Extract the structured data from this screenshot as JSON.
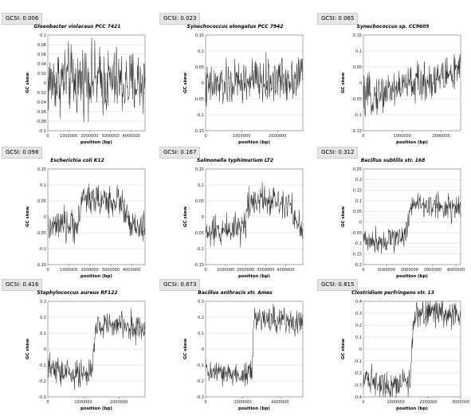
{
  "chart_data": [
    {
      "type": "line",
      "gcsi": "GCSI: 0.006",
      "title": "Gloeobacter violaceus PCC 7421",
      "xlabel": "position (bp)",
      "ylabel": "GC skew",
      "xlim": [
        0,
        4660000
      ],
      "ylim": [
        -0.1,
        0.1
      ],
      "xticks": [
        0,
        1000000,
        2000000,
        3000000,
        4000000
      ],
      "xtick_labels": [
        "0",
        "1000000",
        "2000000",
        "3000000",
        "4000000"
      ],
      "yticks": [
        -0.1,
        -0.08,
        -0.06,
        -0.04,
        -0.02,
        0,
        0.02,
        0.04,
        0.06,
        0.08,
        0.1
      ],
      "ytick_labels": [
        "-0.1",
        "-0.08",
        "-0.06",
        "-0.04",
        "-0.02",
        "0",
        "0.02",
        "0.04",
        "0.06",
        "0.08",
        "0.1"
      ],
      "x": [
        0,
        470000,
        930000,
        1400000,
        1860000,
        2330000,
        2800000,
        3260000,
        3730000,
        4190000,
        4660000
      ],
      "y": [
        0.0,
        0.005,
        0.01,
        0.0,
        0.015,
        0.005,
        0.0,
        0.005,
        -0.005,
        0.0,
        0.005
      ],
      "noise": 0.035
    },
    {
      "type": "line",
      "gcsi": "GCSI: 0.023",
      "title": "Synechococcus elongatus PCC 7942",
      "xlabel": "position (bp)",
      "ylabel": "GC skew",
      "xlim": [
        0,
        2700000
      ],
      "ylim": [
        -0.15,
        0.15
      ],
      "xticks": [
        0,
        1000000,
        2000000
      ],
      "xtick_labels": [
        "0",
        "1000000",
        "2000000"
      ],
      "yticks": [
        -0.15,
        -0.1,
        -0.05,
        0,
        0.05,
        0.1,
        0.15
      ],
      "ytick_labels": [
        "-0.15",
        "-0.1",
        "-0.05",
        "0",
        "0.05",
        "0.1",
        "0.15"
      ],
      "x": [
        0,
        270000,
        540000,
        810000,
        1080000,
        1350000,
        1620000,
        1890000,
        2160000,
        2430000,
        2700000
      ],
      "y": [
        -0.02,
        -0.01,
        -0.01,
        0.0,
        0.0,
        0.01,
        0.0,
        0.01,
        0.01,
        0.02,
        0.03
      ],
      "noise": 0.035
    },
    {
      "type": "line",
      "gcsi": "GCSI: 0.065",
      "title": "Synechococcus sp. CC9605",
      "xlabel": "position (bp)",
      "ylabel": "GC skew",
      "xlim": [
        0,
        2500000
      ],
      "ylim": [
        -0.15,
        0.15
      ],
      "xticks": [
        0,
        1000000,
        2000000
      ],
      "xtick_labels": [
        "0",
        "1000000",
        "2000000"
      ],
      "yticks": [
        -0.15,
        -0.1,
        -0.05,
        0,
        0.05,
        0.1,
        0.15
      ],
      "ytick_labels": [
        "-0.15",
        "-0.1",
        "-0.05",
        "0",
        "0.05",
        "0.1",
        "0.15"
      ],
      "x": [
        0,
        250000,
        500000,
        750000,
        1000000,
        1250000,
        1500000,
        1750000,
        2000000,
        2250000,
        2500000
      ],
      "y": [
        -0.05,
        -0.04,
        -0.03,
        -0.02,
        -0.01,
        0.0,
        0.0,
        0.01,
        0.02,
        0.03,
        0.04
      ],
      "noise": 0.03
    },
    {
      "type": "line",
      "gcsi": "GCSI: 0.098",
      "title": "Escherichia coli K12",
      "xlabel": "position (bp)",
      "ylabel": "GC skew",
      "xlim": [
        0,
        4640000
      ],
      "ylim": [
        -0.15,
        0.15
      ],
      "xticks": [
        0,
        1000000,
        2000000,
        3000000,
        4000000
      ],
      "xtick_labels": [
        "0",
        "1000000",
        "2000000",
        "3000000",
        "4000000"
      ],
      "yticks": [
        -0.15,
        -0.1,
        -0.05,
        0,
        0.05,
        0.1,
        0.15
      ],
      "ytick_labels": [
        "-0.15",
        "-0.1",
        "-0.05",
        "0",
        "0.05",
        "0.1",
        "0.15"
      ],
      "x": [
        0,
        500000,
        1000000,
        1500000,
        1600000,
        2000000,
        2500000,
        3000000,
        3500000,
        3900000,
        4640000
      ],
      "y": [
        -0.04,
        -0.03,
        -0.03,
        -0.02,
        0.06,
        0.06,
        0.05,
        0.05,
        0.05,
        -0.03,
        -0.04
      ],
      "noise": 0.025
    },
    {
      "type": "line",
      "gcsi": "GCSI: 0.167",
      "title": "Salmonella typhimurium LT2",
      "xlabel": "position (bp)",
      "ylabel": "GC skew",
      "xlim": [
        0,
        4860000
      ],
      "ylim": [
        -0.15,
        0.15
      ],
      "xticks": [
        0,
        1000000,
        2000000,
        3000000,
        4000000
      ],
      "xtick_labels": [
        "0",
        "1000000",
        "2000000",
        "3000000",
        "4000000"
      ],
      "yticks": [
        -0.15,
        -0.1,
        -0.05,
        0,
        0.05,
        0.1,
        0.15
      ],
      "ytick_labels": [
        "-0.15",
        "-0.1",
        "-0.05",
        "0",
        "0.05",
        "0.1",
        "0.15"
      ],
      "x": [
        0,
        500000,
        1000000,
        1500000,
        2000000,
        2100000,
        2800000,
        3500000,
        4200000,
        4600000,
        4860000
      ],
      "y": [
        -0.05,
        -0.05,
        -0.04,
        -0.03,
        -0.03,
        0.05,
        0.06,
        0.05,
        0.05,
        -0.03,
        -0.05
      ],
      "noise": 0.025
    },
    {
      "type": "line",
      "gcsi": "GCSI: 0.312",
      "title": "Bacillus subtilis str. 168",
      "xlabel": "position (bp)",
      "ylabel": "GC skew",
      "xlim": [
        0,
        4210000
      ],
      "ylim": [
        -0.2,
        0.25
      ],
      "xticks": [
        0,
        1000000,
        2000000,
        3000000,
        4000000
      ],
      "xtick_labels": [
        "0",
        "1000000",
        "2000000",
        "3000000",
        "4000000"
      ],
      "yticks": [
        -0.2,
        -0.15,
        -0.1,
        -0.05,
        0,
        0.05,
        0.1,
        0.15,
        0.2,
        0.25
      ],
      "ytick_labels": [
        "-0.2",
        "-0.15",
        "-0.1",
        "-0.05",
        "0",
        "0.05",
        "0.1",
        "0.15",
        "0.2",
        "0.25"
      ],
      "x": [
        0,
        500000,
        1000000,
        1500000,
        1900000,
        2000000,
        2100000,
        2500000,
        3000000,
        3500000,
        4210000
      ],
      "y": [
        -0.08,
        -0.09,
        -0.08,
        -0.07,
        -0.05,
        0.08,
        0.09,
        0.08,
        0.08,
        0.07,
        0.06
      ],
      "noise": 0.03
    },
    {
      "type": "line",
      "gcsi": "GCSI: 0.416",
      "title": "Staphylococcus aureus RF122",
      "xlabel": "position (bp)",
      "ylabel": "GC skew",
      "xlim": [
        0,
        2740000
      ],
      "ylim": [
        -0.3,
        0.3
      ],
      "xticks": [
        0,
        1000000,
        2000000
      ],
      "xtick_labels": [
        "0",
        "1000000",
        "2000000"
      ],
      "yticks": [
        -0.3,
        -0.2,
        -0.1,
        0,
        0.1,
        0.2,
        0.3
      ],
      "ytick_labels": [
        "-0.3",
        "-0.2",
        "-0.1",
        "0",
        "0.1",
        "0.2",
        "0.3"
      ],
      "x": [
        0,
        300000,
        600000,
        900000,
        1250000,
        1350000,
        1600000,
        1900000,
        2200000,
        2500000,
        2740000
      ],
      "y": [
        -0.12,
        -0.14,
        -0.15,
        -0.16,
        -0.15,
        0.13,
        0.16,
        0.15,
        0.15,
        0.14,
        0.12
      ],
      "noise": 0.045
    },
    {
      "type": "line",
      "gcsi": "GCSI: 0.673",
      "title": "Bacillus anthracis str. Ames",
      "xlabel": "position (bp)",
      "ylabel": "GC skew",
      "xlim": [
        0,
        5230000
      ],
      "ylim": [
        -0.3,
        0.3
      ],
      "xticks": [
        0,
        2000000,
        4000000
      ],
      "xtick_labels": [
        "0",
        "2000000",
        "4000000"
      ],
      "yticks": [
        -0.3,
        -0.2,
        -0.1,
        0,
        0.1,
        0.2,
        0.3
      ],
      "ytick_labels": [
        "-0.3",
        "-0.2",
        "-0.1",
        "0",
        "0.1",
        "0.2",
        "0.3"
      ],
      "x": [
        0,
        600000,
        1200000,
        1800000,
        2500000,
        2600000,
        3200000,
        3800000,
        4400000,
        4900000,
        5230000
      ],
      "y": [
        -0.14,
        -0.15,
        -0.16,
        -0.16,
        -0.15,
        0.18,
        0.19,
        0.19,
        0.18,
        0.17,
        0.16
      ],
      "noise": 0.04
    },
    {
      "type": "line",
      "gcsi": "GCSI: 0.815",
      "title": "Clostridium perfringens str. 13",
      "xlabel": "position (bp)",
      "ylabel": "GC skew",
      "xlim": [
        0,
        3000000
      ],
      "ylim": [
        -0.4,
        0.4
      ],
      "xticks": [
        0,
        1000000,
        2000000,
        3000000
      ],
      "xtick_labels": [
        "0",
        "1000000",
        "2000000",
        "3000000"
      ],
      "yticks": [
        -0.4,
        -0.3,
        -0.2,
        -0.1,
        0,
        0.1,
        0.2,
        0.3,
        0.4
      ],
      "ytick_labels": [
        "-0.4",
        "-0.3",
        "-0.2",
        "-0.1",
        "0",
        "0.1",
        "0.2",
        "0.3",
        "0.4"
      ],
      "x": [
        0,
        300000,
        600000,
        900000,
        1200000,
        1450000,
        1550000,
        1900000,
        2300000,
        2700000,
        3000000
      ],
      "y": [
        -0.22,
        -0.26,
        -0.28,
        -0.3,
        -0.28,
        -0.25,
        0.27,
        0.3,
        0.31,
        0.29,
        0.26
      ],
      "noise": 0.06
    }
  ]
}
